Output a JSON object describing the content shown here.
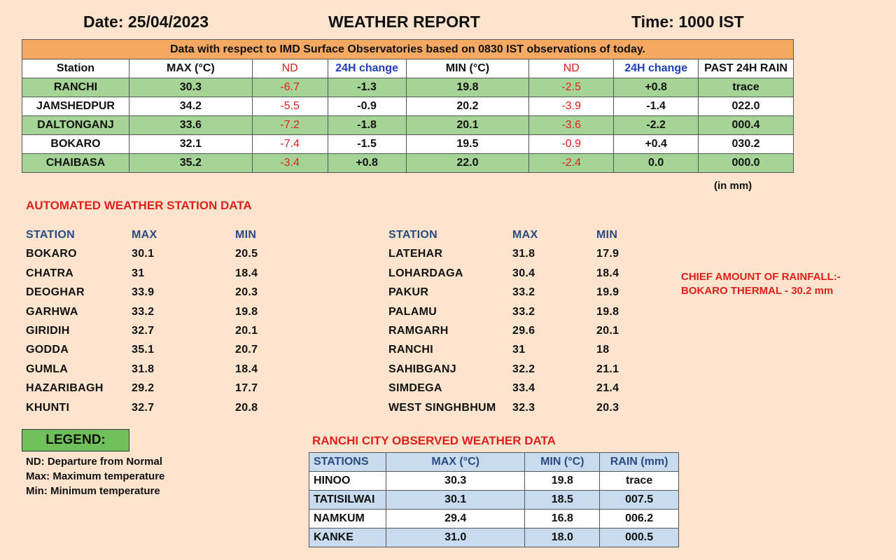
{
  "header": {
    "date": "Date: 25/04/2023",
    "title": "WEATHER REPORT",
    "time": "Time: 1000 IST"
  },
  "imd": {
    "banner": "Data with respect to IMD Surface Observatories based on 0830 IST observations of today.",
    "columns": [
      "Station",
      "MAX (°C)",
      "ND",
      "24H change",
      "MIN (°C)",
      "ND",
      "24H change",
      "PAST 24H RAIN"
    ],
    "rows": [
      [
        "RANCHI",
        "30.3",
        "-6.7",
        "-1.3",
        "19.8",
        "-2.5",
        "+0.8",
        "trace"
      ],
      [
        "JAMSHEDPUR",
        "34.2",
        "-5.5",
        "-0.9",
        "20.2",
        "-3.9",
        "-1.4",
        "022.0"
      ],
      [
        "DALTONGANJ",
        "33.6",
        "-7.2",
        "-1.8",
        "20.1",
        "-3.6",
        "-2.2",
        "000.4"
      ],
      [
        "BOKARO",
        "32.1",
        "-7.4",
        "-1.5",
        "19.5",
        "-0.9",
        "+0.4",
        "030.2"
      ],
      [
        "CHAIBASA",
        "35.2",
        "-3.4",
        "+0.8",
        "22.0",
        "-2.4",
        "0.0",
        "000.0"
      ]
    ],
    "unit_note": "(in mm)"
  },
  "aws": {
    "title": "AUTOMATED WEATHER STATION DATA",
    "columns": [
      "STATION",
      "MAX",
      "MIN"
    ],
    "left": [
      [
        "BOKARO",
        "30.1",
        "20.5"
      ],
      [
        "CHATRA",
        "31",
        "18.4"
      ],
      [
        "DEOGHAR",
        "33.9",
        "20.3"
      ],
      [
        "GARHWA",
        "33.2",
        "19.8"
      ],
      [
        "GIRIDIH",
        "32.7",
        "20.1"
      ],
      [
        "GODDA",
        "35.1",
        "20.7"
      ],
      [
        "GUMLA",
        "31.8",
        "18.4"
      ],
      [
        "HAZARIBAGH",
        "29.2",
        "17.7"
      ],
      [
        "KHUNTI",
        "32.7",
        "20.8"
      ]
    ],
    "right": [
      [
        "LATEHAR",
        "31.8",
        "17.9"
      ],
      [
        "LOHARDAGA",
        "30.4",
        "18.4"
      ],
      [
        "PAKUR",
        "33.2",
        "19.9"
      ],
      [
        "PALAMU",
        "33.2",
        "19.8"
      ],
      [
        "RAMGARH",
        "29.6",
        "20.1"
      ],
      [
        "RANCHI",
        "31",
        "18"
      ],
      [
        "SAHIBGANJ",
        "32.2",
        "21.1"
      ],
      [
        "SIMDEGA",
        "33.4",
        "21.4"
      ],
      [
        "WEST SINGHBHUM",
        "32.3",
        "20.3"
      ]
    ]
  },
  "chief": {
    "line1": "CHIEF AMOUNT OF RAINFALL:-",
    "line2": "BOKARO THERMAL - 30.2 mm"
  },
  "legend": {
    "title": "LEGEND:",
    "items": [
      "ND: Departure from Normal",
      "Max: Maximum temperature",
      "Min: Minimum temperature"
    ]
  },
  "city": {
    "title": "RANCHI CITY OBSERVED WEATHER DATA",
    "columns": [
      "STATIONS",
      "MAX (°C)",
      "MIN (°C)",
      "RAIN (mm)"
    ],
    "rows": [
      [
        "HINOO",
        "30.3",
        "19.8",
        "trace"
      ],
      [
        "TATISILWAI",
        "30.1",
        "18.5",
        "007.5"
      ],
      [
        "NAMKUM",
        "29.4",
        "16.8",
        "006.2"
      ],
      [
        "KANKE",
        "31.0",
        "18.0",
        "000.5"
      ]
    ]
  }
}
